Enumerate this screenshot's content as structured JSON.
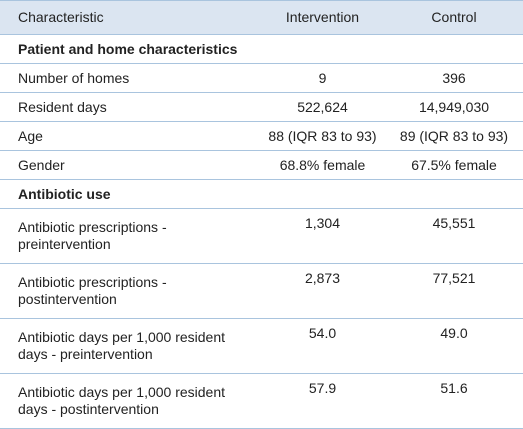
{
  "table": {
    "header": [
      "Characteristic",
      "Intervention",
      "Control"
    ],
    "rows": [
      [
        "Patient and home characteristics"
      ],
      [
        "Number of homes",
        "9",
        "396"
      ],
      [
        "Resident days",
        "522,624",
        "14,949,030"
      ],
      [
        "Age",
        "88 (IQR 83 to 93)",
        "89 (IQR 83 to 93)"
      ],
      [
        "Gender",
        "68.8% female",
        "67.5% female"
      ],
      [
        "Antibiotic use"
      ],
      [
        "Antibiotic prescriptions - preintervention",
        "1,304",
        "45,551"
      ],
      [
        "Antibiotic prescriptions - postintervention",
        "2,873",
        "77,521"
      ],
      [
        "Antibiotic days per 1,000 resident days - preintervention",
        "54.0",
        "49.0"
      ],
      [
        "Antibiotic days per 1,000 resident days - postintervention",
        "57.9",
        "51.6"
      ]
    ]
  }
}
